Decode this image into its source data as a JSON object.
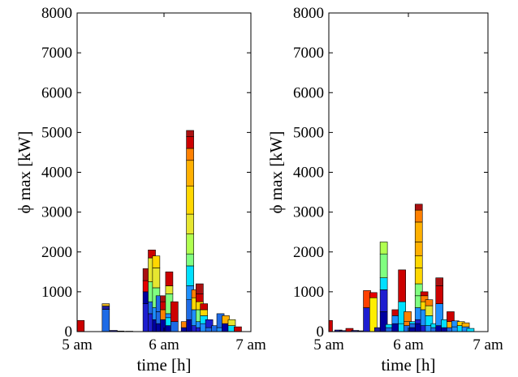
{
  "chart_data": [
    {
      "type": "bar",
      "stacked": true,
      "title": "",
      "xlabel": "time [h]",
      "ylabel": "ϕ max [kW]",
      "ylim": [
        0,
        8000
      ],
      "xlim": [
        5,
        7
      ],
      "yticks": [
        0,
        1000,
        2000,
        3000,
        4000,
        5000,
        6000,
        7000,
        8000
      ],
      "xticks": [
        {
          "value": 5,
          "label": "5 am"
        },
        {
          "value": 6,
          "label": "6 am"
        },
        {
          "value": 7,
          "label": "7 am"
        }
      ],
      "grid": false,
      "bars": [
        {
          "x": 5.04,
          "segments": [
            {
              "value": 280,
              "color": "#cc0000"
            }
          ]
        },
        {
          "x": 5.33,
          "segments": [
            {
              "value": 560,
              "color": "#1e6be6"
            },
            {
              "value": 80,
              "color": "#1e1ea0"
            },
            {
              "value": 60,
              "color": "#e6b31e"
            }
          ]
        },
        {
          "x": 5.42,
          "segments": [
            {
              "value": 30,
              "color": "#1e1ea0"
            }
          ]
        },
        {
          "x": 5.5,
          "segments": [
            {
              "value": 15,
              "color": "#1e1ea0"
            }
          ]
        },
        {
          "x": 5.6,
          "segments": [
            {
              "value": 10,
              "color": "#1e1ea0"
            }
          ]
        },
        {
          "x": 5.8,
          "segments": [
            {
              "value": 700,
              "color": "#1e1ed0"
            },
            {
              "value": 300,
              "color": "#0000a0"
            },
            {
              "value": 280,
              "color": "#e60000"
            },
            {
              "value": 300,
              "color": "#aa1010"
            }
          ]
        },
        {
          "x": 5.86,
          "segments": [
            {
              "value": 450,
              "color": "#1e1ed0"
            },
            {
              "value": 300,
              "color": "#1e6be6"
            },
            {
              "value": 500,
              "color": "#80ff80"
            },
            {
              "value": 600,
              "color": "#e6e630"
            },
            {
              "value": 200,
              "color": "#cc0000"
            }
          ]
        },
        {
          "x": 5.91,
          "segments": [
            {
              "value": 300,
              "color": "#0000a0"
            },
            {
              "value": 300,
              "color": "#1e90ff"
            },
            {
              "value": 500,
              "color": "#80ff80"
            },
            {
              "value": 500,
              "color": "#e6e630"
            },
            {
              "value": 300,
              "color": "#ffd700"
            }
          ]
        },
        {
          "x": 5.95,
          "segments": [
            {
              "value": 200,
              "color": "#0000a0"
            },
            {
              "value": 300,
              "color": "#1e6be6"
            },
            {
              "value": 400,
              "color": "#1e6be6"
            }
          ]
        },
        {
          "x": 6.0,
          "segments": [
            {
              "value": 300,
              "color": "#0000a0"
            },
            {
              "value": 250,
              "color": "#ff8000"
            },
            {
              "value": 200,
              "color": "#cc0000"
            },
            {
              "value": 150,
              "color": "#aa1010"
            }
          ]
        },
        {
          "x": 6.06,
          "segments": [
            {
              "value": 150,
              "color": "#0000a0"
            },
            {
              "value": 200,
              "color": "#00e0ff"
            },
            {
              "value": 100,
              "color": "#1e90ff"
            },
            {
              "value": 500,
              "color": "#80ff80"
            },
            {
              "value": 200,
              "color": "#e6e630"
            },
            {
              "value": 350,
              "color": "#cc0000"
            }
          ]
        },
        {
          "x": 6.12,
          "segments": [
            {
              "value": 250,
              "color": "#1e6be6"
            },
            {
              "value": 500,
              "color": "#cc0000"
            }
          ]
        },
        {
          "x": 6.24,
          "segments": [
            {
              "value": 100,
              "color": "#0000a0"
            },
            {
              "value": 150,
              "color": "#ff8000"
            }
          ]
        },
        {
          "x": 6.3,
          "segments": [
            {
              "value": 300,
              "color": "#0000a0"
            },
            {
              "value": 500,
              "color": "#1e6be6"
            },
            {
              "value": 350,
              "color": "#1e90ff"
            },
            {
              "value": 500,
              "color": "#00e0ff"
            },
            {
              "value": 300,
              "color": "#80ff80"
            },
            {
              "value": 500,
              "color": "#b0ff50"
            },
            {
              "value": 500,
              "color": "#e6e630"
            },
            {
              "value": 700,
              "color": "#ffd700"
            },
            {
              "value": 650,
              "color": "#ffb000"
            },
            {
              "value": 300,
              "color": "#ff8000"
            },
            {
              "value": 300,
              "color": "#cc0000"
            },
            {
              "value": 150,
              "color": "#aa1010"
            }
          ]
        },
        {
          "x": 6.36,
          "segments": [
            {
              "value": 150,
              "color": "#1e1ed0"
            },
            {
              "value": 400,
              "color": "#1e90ff"
            },
            {
              "value": 300,
              "color": "#ffd700"
            },
            {
              "value": 200,
              "color": "#ff8000"
            }
          ]
        },
        {
          "x": 6.41,
          "segments": [
            {
              "value": 100,
              "color": "#1e1ed0"
            },
            {
              "value": 150,
              "color": "#1e90ff"
            },
            {
              "value": 300,
              "color": "#80ff80"
            },
            {
              "value": 200,
              "color": "#ffd700"
            },
            {
              "value": 200,
              "color": "#cc0000"
            },
            {
              "value": 250,
              "color": "#aa1010"
            }
          ]
        },
        {
          "x": 6.46,
          "segments": [
            {
              "value": 200,
              "color": "#1e90ff"
            },
            {
              "value": 200,
              "color": "#00e0ff"
            },
            {
              "value": 150,
              "color": "#ffd700"
            },
            {
              "value": 150,
              "color": "#cc0000"
            }
          ]
        },
        {
          "x": 6.52,
          "segments": [
            {
              "value": 100,
              "color": "#1e6be6"
            },
            {
              "value": 200,
              "color": "#1e1ed0"
            }
          ]
        },
        {
          "x": 6.59,
          "segments": [
            {
              "value": 150,
              "color": "#1e6be6"
            }
          ]
        },
        {
          "x": 6.65,
          "segments": [
            {
              "value": 100,
              "color": "#1e90ff"
            },
            {
              "value": 350,
              "color": "#1e6be6"
            }
          ]
        },
        {
          "x": 6.71,
          "segments": [
            {
              "value": 200,
              "color": "#0000a0"
            },
            {
              "value": 200,
              "color": "#ffb000"
            }
          ]
        },
        {
          "x": 6.78,
          "segments": [
            {
              "value": 150,
              "color": "#00e0ff"
            },
            {
              "value": 150,
              "color": "#e6e630"
            }
          ]
        },
        {
          "x": 6.85,
          "segments": [
            {
              "value": 120,
              "color": "#cc0000"
            }
          ]
        }
      ]
    },
    {
      "type": "bar",
      "stacked": true,
      "title": "",
      "xlabel": "time [h]",
      "ylabel": "ϕ max [kW]",
      "ylim": [
        0,
        8000
      ],
      "xlim": [
        5,
        7
      ],
      "yticks": [
        0,
        1000,
        2000,
        3000,
        4000,
        5000,
        6000,
        7000,
        8000
      ],
      "xticks": [
        {
          "value": 5,
          "label": "5 am"
        },
        {
          "value": 6,
          "label": "6 am"
        },
        {
          "value": 7,
          "label": "7 am"
        }
      ],
      "grid": false,
      "bars": [
        {
          "x": 5.0,
          "segments": [
            {
              "value": 280,
              "color": "#cc0000"
            }
          ]
        },
        {
          "x": 5.12,
          "segments": [
            {
              "value": 40,
              "color": "#1e1ea0"
            }
          ]
        },
        {
          "x": 5.18,
          "segments": [
            {
              "value": 25,
              "color": "#1e1ea0"
            }
          ]
        },
        {
          "x": 5.26,
          "segments": [
            {
              "value": 80,
              "color": "#cc0000"
            }
          ]
        },
        {
          "x": 5.33,
          "segments": [
            {
              "value": 30,
              "color": "#1e1ea0"
            }
          ]
        },
        {
          "x": 5.41,
          "segments": [
            {
              "value": 20,
              "color": "#1e1ea0"
            }
          ]
        },
        {
          "x": 5.48,
          "segments": [
            {
              "value": 600,
              "color": "#1e1ed0"
            },
            {
              "value": 430,
              "color": "#ff4000"
            }
          ]
        },
        {
          "x": 5.56,
          "segments": [
            {
              "value": 850,
              "color": "#ffee00"
            },
            {
              "value": 130,
              "color": "#e60000"
            }
          ]
        },
        {
          "x": 5.62,
          "segments": [
            {
              "value": 100,
              "color": "#1e1ea0"
            }
          ]
        },
        {
          "x": 5.69,
          "segments": [
            {
              "value": 500,
              "color": "#0000a0"
            },
            {
              "value": 550,
              "color": "#1e1ed0"
            },
            {
              "value": 300,
              "color": "#00e0ff"
            },
            {
              "value": 600,
              "color": "#80ff80"
            },
            {
              "value": 300,
              "color": "#b0ff50"
            }
          ]
        },
        {
          "x": 5.76,
          "segments": [
            {
              "value": 100,
              "color": "#1e6be6"
            },
            {
              "value": 80,
              "color": "#00e0ff"
            }
          ]
        },
        {
          "x": 5.84,
          "segments": [
            {
              "value": 200,
              "color": "#0000a0"
            },
            {
              "value": 200,
              "color": "#1e90ff"
            },
            {
              "value": 150,
              "color": "#cc0000"
            }
          ]
        },
        {
          "x": 5.92,
          "segments": [
            {
              "value": 200,
              "color": "#00e0ff"
            },
            {
              "value": 550,
              "color": "#00e0ff"
            },
            {
              "value": 800,
              "color": "#cc0000"
            }
          ]
        },
        {
          "x": 5.99,
          "segments": [
            {
              "value": 150,
              "color": "#1e6be6"
            },
            {
              "value": 100,
              "color": "#ff8000"
            },
            {
              "value": 250,
              "color": "#ff8000"
            }
          ]
        },
        {
          "x": 6.06,
          "segments": [
            {
              "value": 100,
              "color": "#0000a0"
            },
            {
              "value": 100,
              "color": "#1e6be6"
            },
            {
              "value": 50,
              "color": "#00e0ff"
            }
          ]
        },
        {
          "x": 6.13,
          "segments": [
            {
              "value": 200,
              "color": "#0000a0"
            },
            {
              "value": 100,
              "color": "#1e1ed0"
            },
            {
              "value": 300,
              "color": "#1e90ff"
            },
            {
              "value": 300,
              "color": "#80ff80"
            },
            {
              "value": 300,
              "color": "#80ff80"
            },
            {
              "value": 400,
              "color": "#ffd700"
            },
            {
              "value": 300,
              "color": "#ffd700"
            },
            {
              "value": 350,
              "color": "#ffb000"
            },
            {
              "value": 500,
              "color": "#ffb000"
            },
            {
              "value": 300,
              "color": "#ff8000"
            },
            {
              "value": 150,
              "color": "#aa1010"
            }
          ]
        },
        {
          "x": 6.2,
          "segments": [
            {
              "value": 150,
              "color": "#1e1ed0"
            },
            {
              "value": 400,
              "color": "#1e90ff"
            },
            {
              "value": 200,
              "color": "#ffd700"
            },
            {
              "value": 150,
              "color": "#ff8000"
            },
            {
              "value": 100,
              "color": "#cc0000"
            }
          ]
        },
        {
          "x": 6.26,
          "segments": [
            {
              "value": 150,
              "color": "#1e90ff"
            },
            {
              "value": 250,
              "color": "#00e0ff"
            },
            {
              "value": 250,
              "color": "#e6e630"
            },
            {
              "value": 150,
              "color": "#ff8000"
            }
          ]
        },
        {
          "x": 6.33,
          "segments": [
            {
              "value": 100,
              "color": "#1e6be6"
            },
            {
              "value": 100,
              "color": "#00e0ff"
            }
          ]
        },
        {
          "x": 6.39,
          "segments": [
            {
              "value": 150,
              "color": "#0000a0"
            },
            {
              "value": 550,
              "color": "#1e90ff"
            },
            {
              "value": 450,
              "color": "#cc0000"
            },
            {
              "value": 200,
              "color": "#aa1010"
            }
          ]
        },
        {
          "x": 6.46,
          "segments": [
            {
              "value": 100,
              "color": "#0000a0"
            },
            {
              "value": 200,
              "color": "#00e0ff"
            }
          ]
        },
        {
          "x": 6.53,
          "segments": [
            {
              "value": 100,
              "color": "#1e6be6"
            },
            {
              "value": 150,
              "color": "#ffb000"
            },
            {
              "value": 250,
              "color": "#cc0000"
            }
          ]
        },
        {
          "x": 6.59,
          "segments": [
            {
              "value": 120,
              "color": "#1e90ff"
            },
            {
              "value": 150,
              "color": "#1e90ff"
            }
          ]
        },
        {
          "x": 6.66,
          "segments": [
            {
              "value": 150,
              "color": "#00e0ff"
            },
            {
              "value": 100,
              "color": "#ffd700"
            }
          ]
        },
        {
          "x": 6.72,
          "segments": [
            {
              "value": 120,
              "color": "#1e90ff"
            },
            {
              "value": 100,
              "color": "#ffb000"
            }
          ]
        },
        {
          "x": 6.78,
          "segments": [
            {
              "value": 80,
              "color": "#00e0ff"
            }
          ]
        }
      ]
    }
  ]
}
